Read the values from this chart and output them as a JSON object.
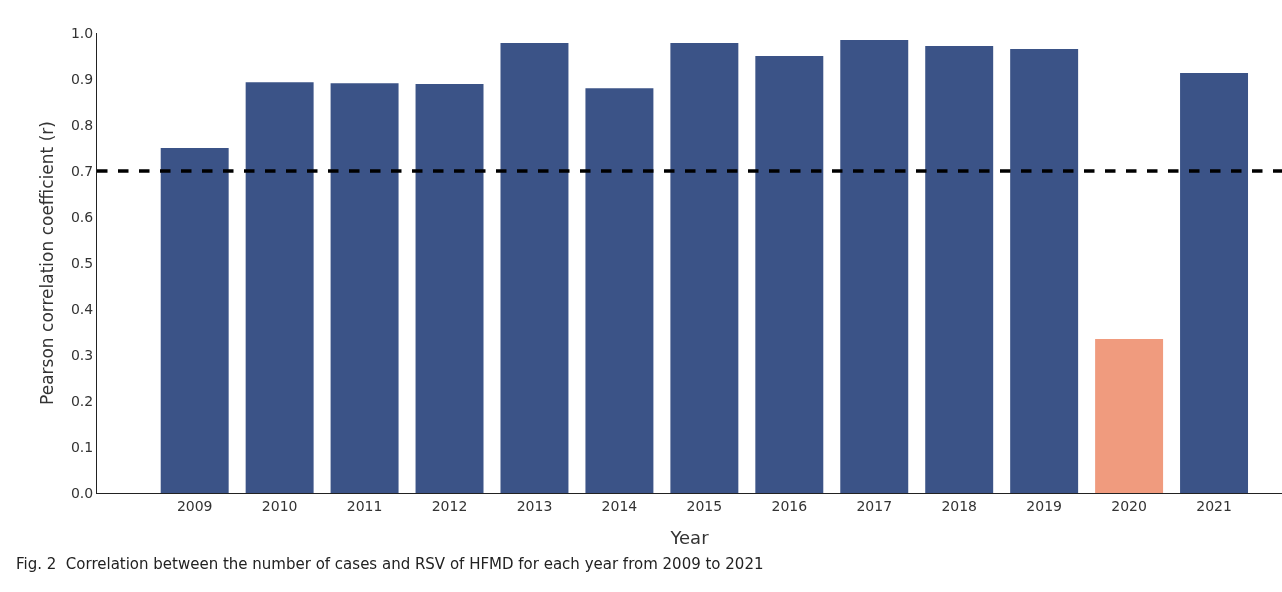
{
  "chart_data": {
    "type": "bar",
    "xlabel": "Year",
    "ylabel": "Pearson correlation coefficient (r)",
    "categories": [
      "2009",
      "2010",
      "2011",
      "2012",
      "2013",
      "2014",
      "2015",
      "2016",
      "2017",
      "2018",
      "2019",
      "2020",
      "2021"
    ],
    "values": [
      0.75,
      0.893,
      0.891,
      0.889,
      0.978,
      0.88,
      0.978,
      0.95,
      0.985,
      0.972,
      0.965,
      0.335,
      0.913
    ],
    "colors": [
      "#3b5387",
      "#3b5387",
      "#3b5387",
      "#3b5387",
      "#3b5387",
      "#3b5387",
      "#3b5387",
      "#3b5387",
      "#3b5387",
      "#3b5387",
      "#3b5387",
      "#f09b7e",
      "#3b5387"
    ],
    "ylim": [
      0,
      1.0
    ],
    "yticks": [
      {
        "value": 0,
        "label": "0.0"
      },
      0.1,
      0.2,
      0.3,
      0.4,
      0.5,
      0.6,
      0.7,
      0.8,
      0.9,
      {
        "value": 1,
        "label": "1.0"
      }
    ],
    "grid": false,
    "ref_lines": [
      {
        "axis": "y",
        "value": 0.7,
        "color": "#000000",
        "line_style": "dashed"
      }
    ],
    "annotations": [
      "Fig. 2  Correlation between the number of cases and RSV of HFMD for each year from 2009 to 2021"
    ]
  }
}
